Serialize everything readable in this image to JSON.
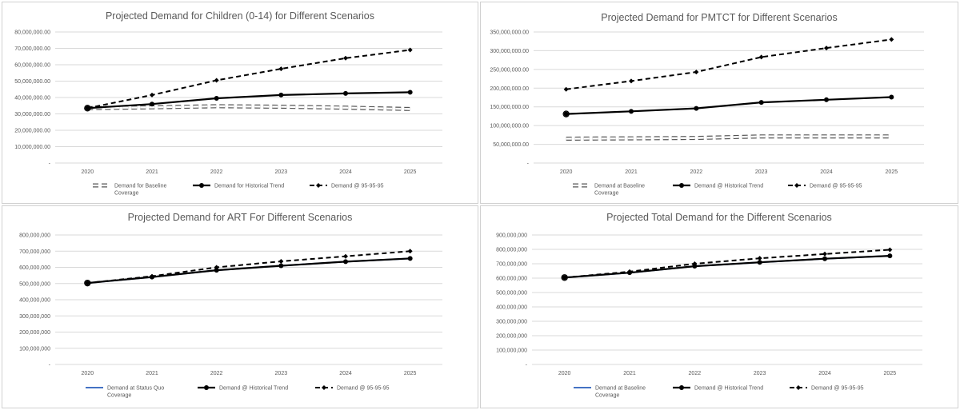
{
  "chart_data": [
    {
      "type": "line",
      "title": "Projected Demand for Children (0-14) for Different Scenarios",
      "categories": [
        "2020",
        "2021",
        "2022",
        "2023",
        "2024",
        "2025"
      ],
      "ylim": [
        0,
        80000000
      ],
      "yticks": [
        "-",
        "10,000,000.00",
        "20,000,000.00",
        "30,000,000.00",
        "40,000,000.00",
        "50,000,000.00",
        "60,000,000.00",
        "70,000,000.00",
        "80,000,000.00"
      ],
      "series": [
        {
          "name": "Demand for Baseline Coverage",
          "legend": [
            "Demand for Baseline",
            "Coverage"
          ],
          "style": "baseline",
          "values": [
            33500000,
            34000000,
            34700000,
            34400000,
            33800000,
            33000000
          ]
        },
        {
          "name": "Demand for Historical Trend",
          "legend": [
            "Demand for Historical Trend"
          ],
          "style": "solid",
          "values": [
            33500000,
            36000000,
            39500000,
            41500000,
            42500000,
            43200000
          ]
        },
        {
          "name": "Demand @ 95-95-95",
          "legend": [
            "Demand @ 95-95-95"
          ],
          "style": "dash",
          "values": [
            33500000,
            41500000,
            50500000,
            57500000,
            64000000,
            69000000
          ]
        }
      ]
    },
    {
      "type": "line",
      "title": "Projected Demand for PMTCT for Different Scenarios",
      "categories": [
        "2020",
        "2021",
        "2022",
        "2023",
        "2024",
        "2025"
      ],
      "ylim": [
        0,
        350000000
      ],
      "yticks": [
        "-",
        "50,000,000.00",
        "100,000,000.00",
        "150,000,000.00",
        "200,000,000.00",
        "250,000,000.00",
        "300,000,000.00",
        "350,000,000.00"
      ],
      "series": [
        {
          "name": "Demand at Baseline Coverage",
          "legend": [
            "Demand at Baseline",
            "Coverage"
          ],
          "style": "baseline",
          "values": [
            65000000,
            66000000,
            67000000,
            71000000,
            71000000,
            71000000
          ]
        },
        {
          "name": "Demand @ Historical Trend",
          "legend": [
            "Demand @ Historical Trend"
          ],
          "style": "solid",
          "values": [
            131000000,
            138000000,
            146000000,
            162000000,
            169000000,
            176000000
          ]
        },
        {
          "name": "Demand @ 95-95-95",
          "legend": [
            "Demand @ 95-95-95"
          ],
          "style": "dash",
          "values": [
            197000000,
            219000000,
            243000000,
            283000000,
            307000000,
            330000000
          ]
        }
      ]
    },
    {
      "type": "line",
      "title": "Projected Demand for ART For Different Scenarios",
      "categories": [
        "2020",
        "2021",
        "2022",
        "2023",
        "2024",
        "2025"
      ],
      "ylim": [
        0,
        800000000
      ],
      "yticks": [
        "-",
        "100,000,000",
        "200,000,000",
        "300,000,000",
        "400,000,000",
        "500,000,000",
        "600,000,000",
        "700,000,000",
        "800,000,000"
      ],
      "series": [
        {
          "name": "Demand at Status Quo Coverage",
          "legend": [
            "Demand at Status Quo",
            "Coverage"
          ],
          "style": "blue",
          "values": [
            503000000,
            540000000,
            582000000,
            610000000,
            635000000,
            655000000
          ]
        },
        {
          "name": "Demand @ Historical Trend",
          "legend": [
            "Demand @ Historical Trend"
          ],
          "style": "solid",
          "values": [
            503000000,
            540000000,
            582000000,
            610000000,
            635000000,
            655000000
          ]
        },
        {
          "name": "Demand @ 95-95-95",
          "legend": [
            "Demand @ 95-95-95"
          ],
          "style": "dash",
          "values": [
            503000000,
            545000000,
            600000000,
            637000000,
            668000000,
            700000000
          ]
        }
      ]
    },
    {
      "type": "line",
      "title": "Projected Total Demand for the Different Scenarios",
      "categories": [
        "2020",
        "2021",
        "2022",
        "2023",
        "2024",
        "2025"
      ],
      "ylim": [
        0,
        900000000
      ],
      "yticks": [
        "-",
        "100,000,000",
        "200,000,000",
        "300,000,000",
        "400,000,000",
        "500,000,000",
        "600,000,000",
        "700,000,000",
        "800,000,000",
        "900,000,000"
      ],
      "series": [
        {
          "name": "Demand at Baseline Coverage",
          "legend": [
            "Demand at Baseline",
            "Coverage"
          ],
          "style": "blue",
          "values": [
            604000000,
            638000000,
            683000000,
            710000000,
            735000000,
            755000000
          ]
        },
        {
          "name": "Demand @ Historical Trend",
          "legend": [
            "Demand @ Historical Trend"
          ],
          "style": "solid",
          "values": [
            604000000,
            638000000,
            683000000,
            710000000,
            735000000,
            755000000
          ]
        },
        {
          "name": "Demand @ 95-95-95",
          "legend": [
            "Demand @ 95-95-95"
          ],
          "style": "dash",
          "values": [
            604000000,
            645000000,
            700000000,
            738000000,
            768000000,
            797000000
          ]
        }
      ]
    }
  ]
}
